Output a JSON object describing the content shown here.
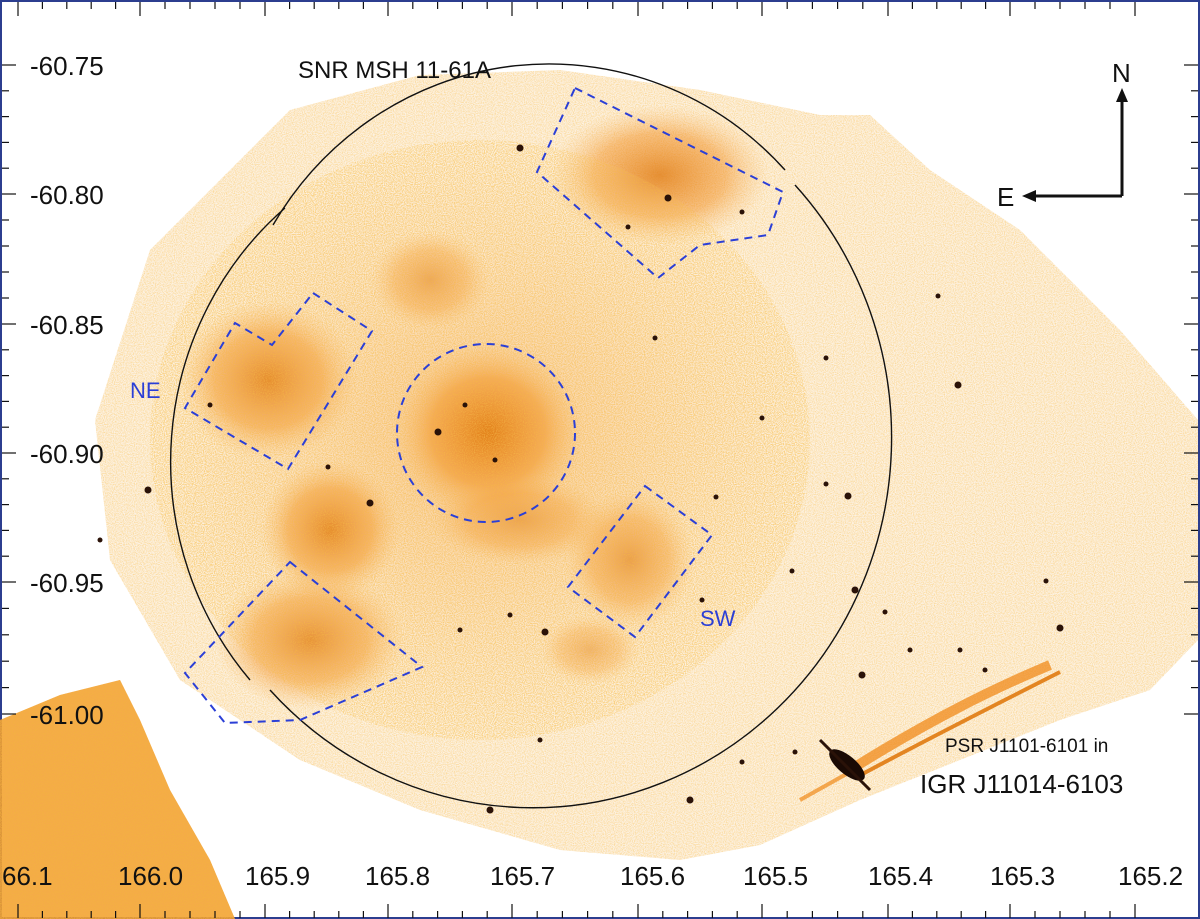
{
  "figure": {
    "title": "SNR MSH 11-61A",
    "region_labels": {
      "ne": "NE",
      "sw": "SW"
    },
    "compass": {
      "north": "N",
      "east": "E"
    },
    "source_label_line1": "PSR J1101-6101 in",
    "source_label_line2": "IGR J11014-6103",
    "colors": {
      "emission": "#f08a1a",
      "emission_light": "#f6b35e",
      "region_box": "#2b3fd6",
      "ellipse": "#111111",
      "background": "#ffffff"
    }
  },
  "axes": {
    "y_ticks": [
      "-60.75",
      "-60.80",
      "-60.85",
      "-60.90",
      "-60.95",
      "-61.00"
    ],
    "x_ticks": [
      "66.1",
      "166.0",
      "165.9",
      "165.8",
      "165.7",
      "165.6",
      "165.5",
      "165.4",
      "165.3",
      "165.2"
    ]
  }
}
